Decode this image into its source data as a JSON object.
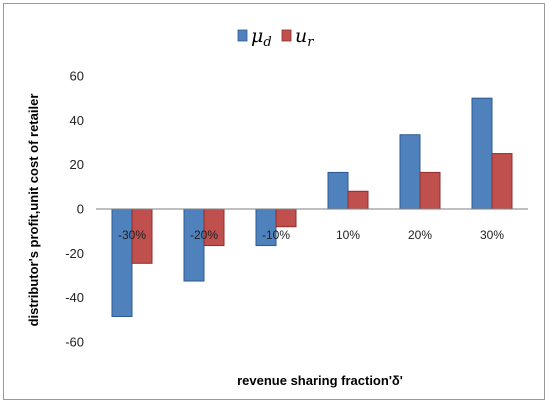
{
  "chart_data": {
    "type": "bar",
    "title": "",
    "xlabel": "revenue sharing fraction'δ'",
    "ylabel": "distributor's profit,unit cost of retailer",
    "categories": [
      "-30%",
      "-20%",
      "-10%",
      "10%",
      "20%",
      "30%"
    ],
    "series": [
      {
        "name": "μ",
        "subscript": "d",
        "color": "#4f81bd",
        "stroke": "#2c5a8f",
        "values": [
          -48.5,
          -32.5,
          -16.5,
          16.5,
          33.5,
          50
        ]
      },
      {
        "name": "u",
        "subscript": "r",
        "color": "#c0504d",
        "stroke": "#8c2f2d",
        "values": [
          -24.5,
          -16.5,
          -8,
          8,
          16.5,
          25
        ]
      }
    ],
    "ylim": [
      -60,
      60
    ],
    "yticks": [
      -60,
      -40,
      -20,
      0,
      20,
      40,
      60
    ],
    "grid": false,
    "legend": "top-center"
  }
}
